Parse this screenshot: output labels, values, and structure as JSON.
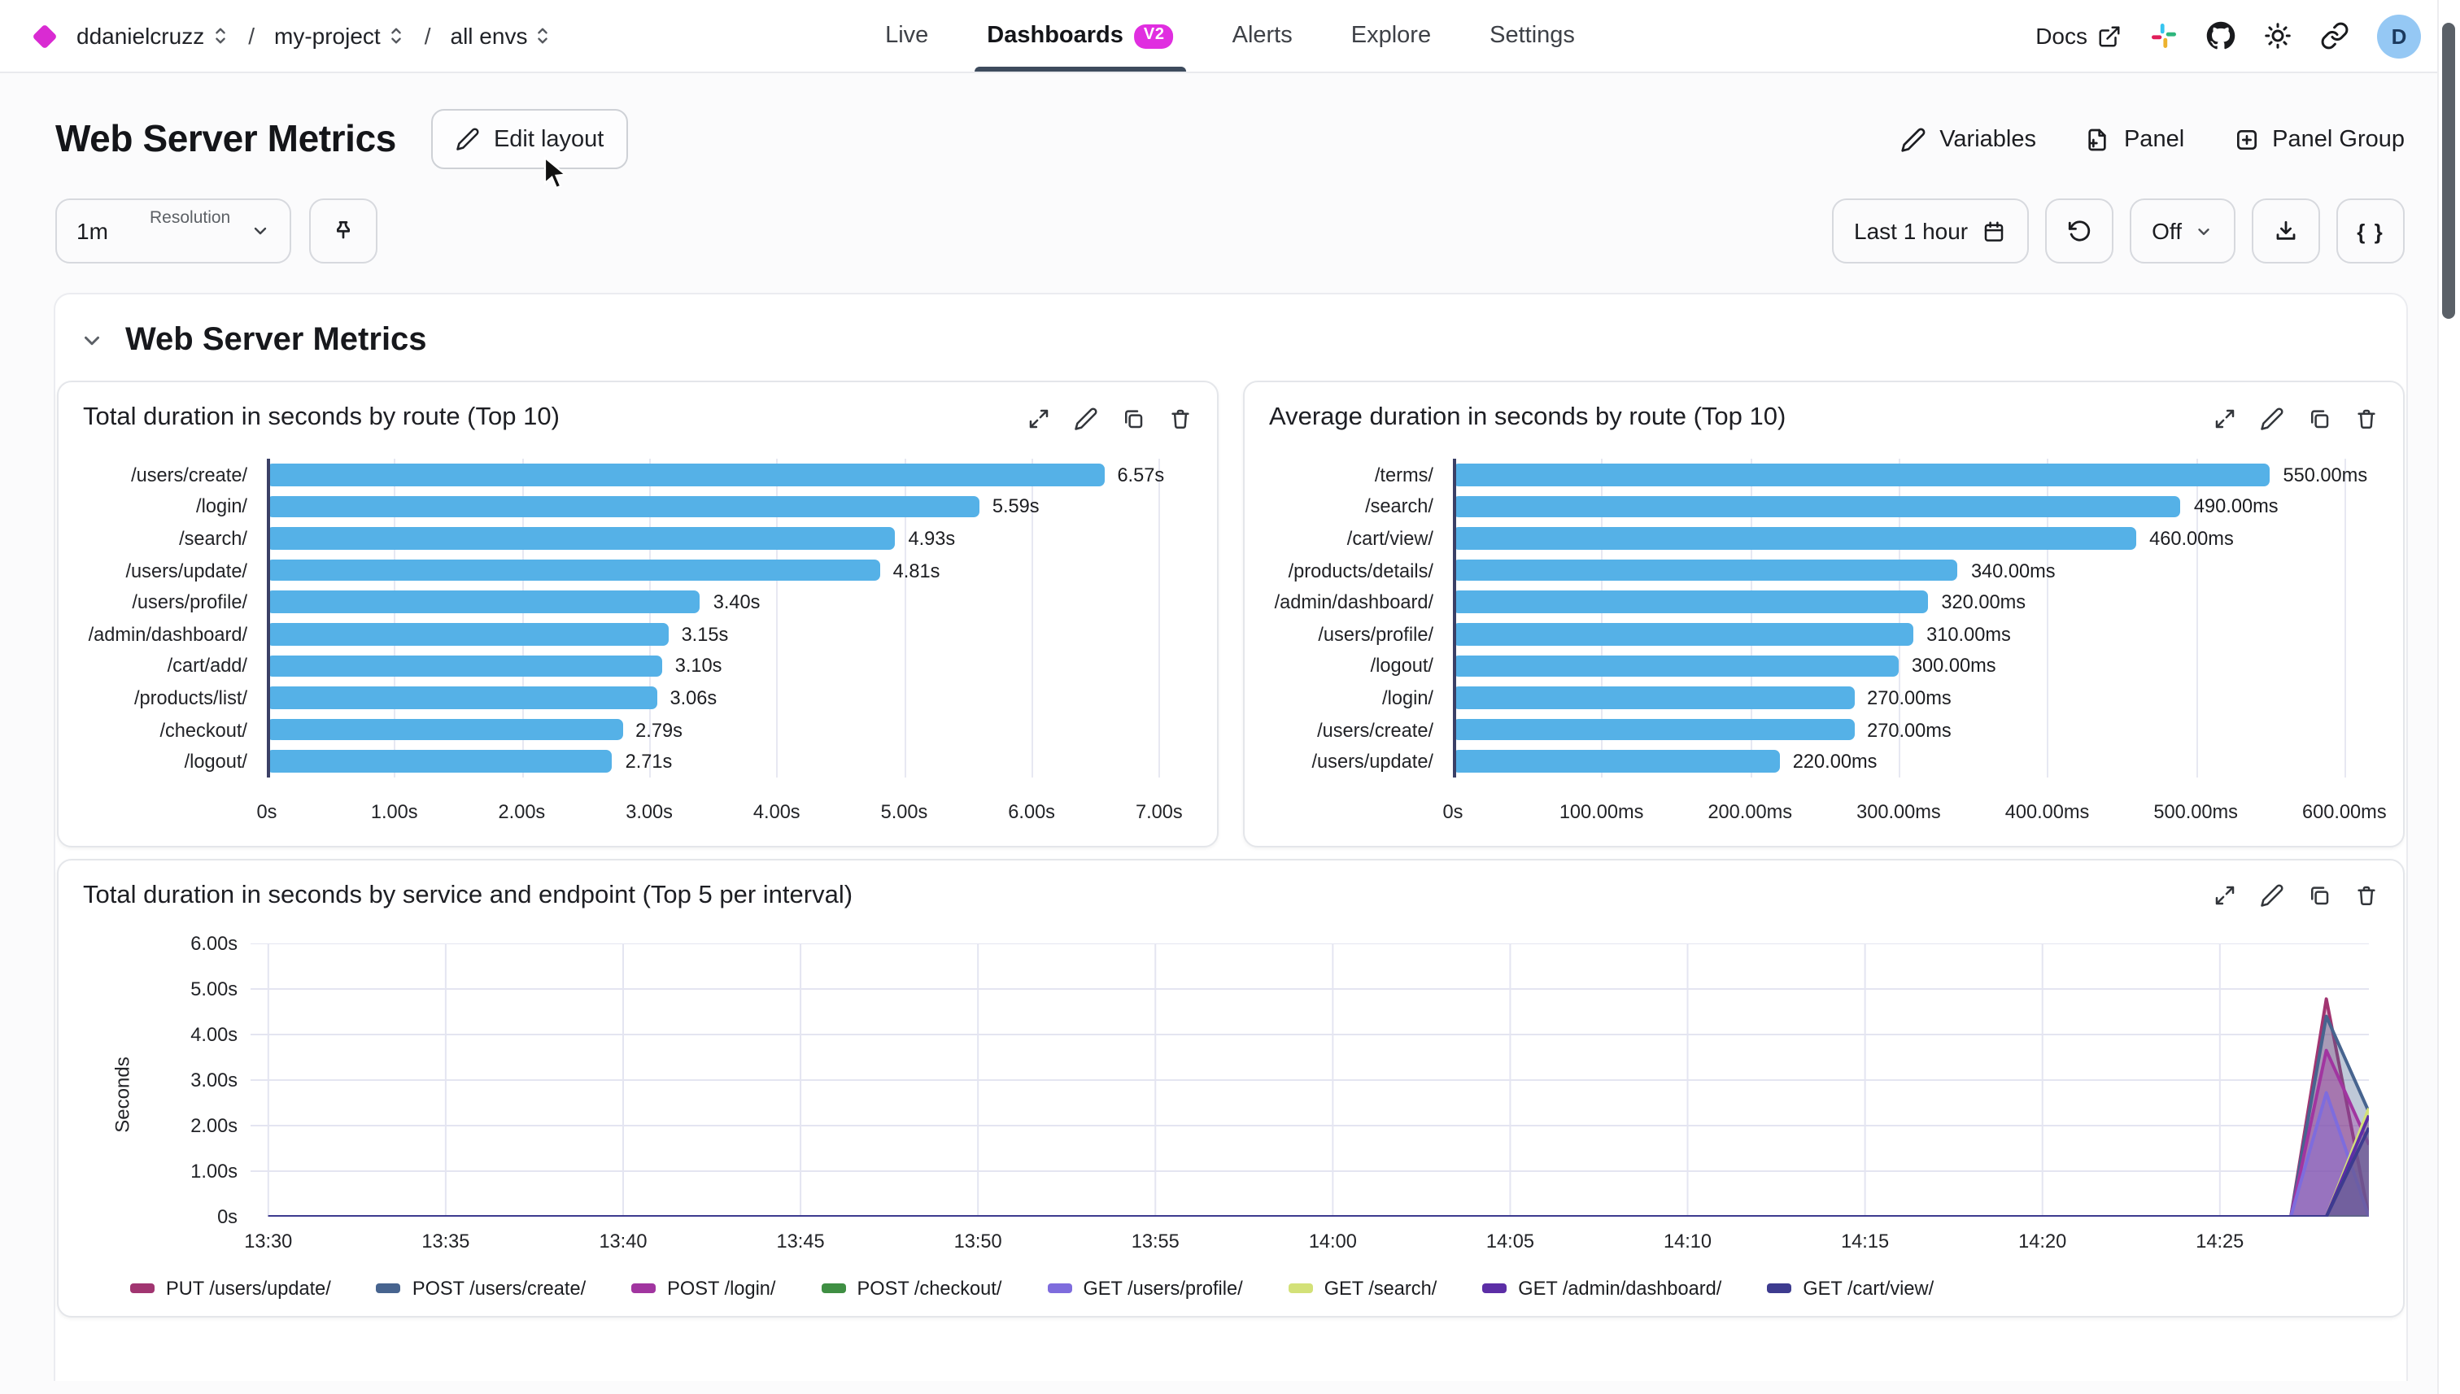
{
  "nav": {
    "logo_color": "#d92bd2",
    "breadcrumb": {
      "items": [
        "ddanielcruzz",
        "my-project",
        "all envs"
      ],
      "separator": "/"
    },
    "tabs": [
      {
        "label": "Live",
        "active": false
      },
      {
        "label": "Dashboards",
        "active": true,
        "badge": "V2"
      },
      {
        "label": "Alerts",
        "active": false
      },
      {
        "label": "Explore",
        "active": false
      },
      {
        "label": "Settings",
        "active": false
      }
    ],
    "badge_color": "#e02ee0",
    "docs_label": "Docs",
    "avatar": {
      "letter": "D",
      "bg": "#95c8f4"
    }
  },
  "header": {
    "title": "Web Server Metrics",
    "edit_layout": "Edit layout",
    "variables_label": "Variables",
    "panel_label": "Panel",
    "panel_group_label": "Panel Group"
  },
  "controls": {
    "resolution_label": "Resolution",
    "resolution_value": "1m",
    "time_range": "Last 1 hour",
    "auto_refresh": "Off",
    "braces": "{ }"
  },
  "section": {
    "title": "Web Server Metrics"
  },
  "chart_data": [
    {
      "type": "bar",
      "orientation": "horizontal",
      "title": "Total duration in seconds by route (Top 10)",
      "categories": [
        "/users/create/",
        "/login/",
        "/search/",
        "/users/update/",
        "/users/profile/",
        "/admin/dashboard/",
        "/cart/add/",
        "/products/list/",
        "/checkout/",
        "/logout/"
      ],
      "values": [
        6.57,
        5.59,
        4.93,
        4.81,
        3.4,
        3.15,
        3.1,
        3.06,
        2.79,
        2.71
      ],
      "value_labels": [
        "6.57s",
        "5.59s",
        "4.93s",
        "4.81s",
        "3.40s",
        "3.15s",
        "3.10s",
        "3.06s",
        "2.79s",
        "2.71s"
      ],
      "x_ticks": {
        "values": [
          0,
          1,
          2,
          3,
          4,
          5,
          6,
          7
        ],
        "labels": [
          "0s",
          "1.00s",
          "2.00s",
          "3.00s",
          "4.00s",
          "5.00s",
          "6.00s",
          "7.00s"
        ]
      },
      "xlim": [
        0,
        7.25
      ],
      "bar_color": "#55b1e7",
      "grid": true
    },
    {
      "type": "bar",
      "orientation": "horizontal",
      "title": "Average duration in seconds by route (Top 10)",
      "categories": [
        "/terms/",
        "/search/",
        "/cart/view/",
        "/products/details/",
        "/admin/dashboard/",
        "/users/profile/",
        "/logout/",
        "/login/",
        "/users/create/",
        "/users/update/"
      ],
      "values": [
        550,
        490,
        460,
        340,
        320,
        310,
        300,
        270,
        270,
        220
      ],
      "value_labels": [
        "550.00ms",
        "490.00ms",
        "460.00ms",
        "340.00ms",
        "320.00ms",
        "310.00ms",
        "300.00ms",
        "270.00ms",
        "270.00ms",
        "220.00ms"
      ],
      "x_ticks": {
        "values": [
          0,
          100,
          200,
          300,
          400,
          500,
          600
        ],
        "labels": [
          "0s",
          "100.00ms",
          "200.00ms",
          "300.00ms",
          "400.00ms",
          "500.00ms",
          "600.00ms"
        ]
      },
      "xlim": [
        0,
        622
      ],
      "bar_color": "#55b1e7",
      "grid": true
    },
    {
      "type": "area",
      "title": "Total duration in seconds by service and endpoint (Top 5 per interval)",
      "ylabel": "Seconds",
      "ylim": [
        0,
        6
      ],
      "y_ticks": {
        "values": [
          0,
          1,
          2,
          3,
          4,
          5,
          6
        ],
        "labels": [
          "0s",
          "1.00s",
          "2.00s",
          "3.00s",
          "4.00s",
          "5.00s",
          "6.00s"
        ]
      },
      "x_tick_minutes": [
        0,
        5,
        10,
        15,
        20,
        25,
        30,
        35,
        40,
        45,
        50,
        55
      ],
      "x_tick_labels": [
        "13:30",
        "13:35",
        "13:40",
        "13:45",
        "13:50",
        "13:55",
        "14:00",
        "14:05",
        "14:10",
        "14:15",
        "14:20",
        "14:25"
      ],
      "x_span_minutes": [
        -0.5,
        59.2
      ],
      "fill_opacity": 0.35,
      "grid": true,
      "legend_position": "bottom",
      "series": [
        {
          "name": "PUT /users/update/",
          "color": "#a13571",
          "points": [
            [
              0,
              0
            ],
            [
              57,
              0
            ],
            [
              58,
              4.78
            ],
            [
              59.2,
              0
            ]
          ]
        },
        {
          "name": "POST /users/create/",
          "color": "#47648f",
          "points": [
            [
              0,
              0
            ],
            [
              57,
              0
            ],
            [
              58,
              4.4
            ],
            [
              59.2,
              2.3
            ]
          ]
        },
        {
          "name": "POST /login/",
          "color": "#a135a0",
          "points": [
            [
              0,
              0
            ],
            [
              57,
              0
            ],
            [
              58,
              3.65
            ],
            [
              59.2,
              1.58
            ]
          ]
        },
        {
          "name": "POST /checkout/",
          "color": "#3f8f43",
          "points": [
            [
              0,
              0
            ],
            [
              57,
              0
            ],
            [
              59.2,
              0
            ]
          ]
        },
        {
          "name": "GET /users/profile/",
          "color": "#7e6cdd",
          "points": [
            [
              0,
              0
            ],
            [
              57,
              0
            ],
            [
              58,
              2.72
            ],
            [
              59.2,
              0
            ]
          ]
        },
        {
          "name": "GET /search/",
          "color": "#d3e178",
          "points": [
            [
              0,
              0
            ],
            [
              58,
              0
            ],
            [
              59.2,
              2.38
            ]
          ]
        },
        {
          "name": "GET /admin/dashboard/",
          "color": "#5c2ea6",
          "points": [
            [
              0,
              0
            ],
            [
              58,
              0
            ],
            [
              59.2,
              2.22
            ]
          ]
        },
        {
          "name": "GET /cart/view/",
          "color": "#3d3b8f",
          "points": [
            [
              0,
              0
            ],
            [
              58,
              0
            ],
            [
              59.2,
              1.95
            ]
          ]
        }
      ]
    }
  ],
  "panel_actions": [
    "expand",
    "edit",
    "duplicate",
    "delete"
  ]
}
